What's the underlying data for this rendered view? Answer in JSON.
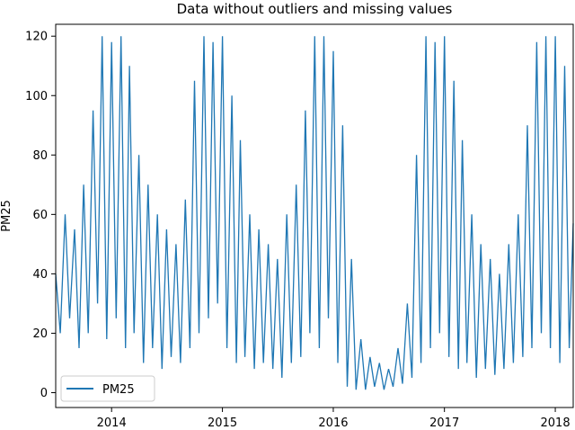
{
  "chart_data": {
    "type": "line",
    "title": "Data without outliers and missing values",
    "xlabel": "",
    "ylabel": "PM25",
    "xlim": [
      "2013-07-01",
      "2018-03-01"
    ],
    "ylim": [
      -5,
      124
    ],
    "x_ticks": [
      "2014-01-01",
      "2015-01-01",
      "2016-01-01",
      "2017-01-01",
      "2018-01-01"
    ],
    "x_tick_labels": [
      "2014",
      "2015",
      "2016",
      "2017",
      "2018"
    ],
    "y_ticks": [
      0,
      20,
      40,
      60,
      80,
      100,
      120
    ],
    "y_tick_labels": [
      "0",
      "20",
      "40",
      "60",
      "80",
      "100",
      "120"
    ],
    "legend": {
      "placement": "lower-left"
    },
    "grid": false,
    "series": [
      {
        "name": "PM25",
        "color": "#1f77b4",
        "points": [
          [
            "2013-07-01",
            40
          ],
          [
            "2013-07-16",
            20
          ],
          [
            "2013-08-01",
            60
          ],
          [
            "2013-08-16",
            25
          ],
          [
            "2013-09-01",
            55
          ],
          [
            "2013-09-16",
            15
          ],
          [
            "2013-10-01",
            70
          ],
          [
            "2013-10-16",
            20
          ],
          [
            "2013-11-01",
            95
          ],
          [
            "2013-11-16",
            30
          ],
          [
            "2013-12-01",
            120
          ],
          [
            "2013-12-16",
            18
          ],
          [
            "2014-01-01",
            118
          ],
          [
            "2014-01-16",
            25
          ],
          [
            "2014-02-01",
            120
          ],
          [
            "2014-02-16",
            15
          ],
          [
            "2014-03-01",
            110
          ],
          [
            "2014-03-16",
            20
          ],
          [
            "2014-04-01",
            80
          ],
          [
            "2014-04-16",
            10
          ],
          [
            "2014-05-01",
            70
          ],
          [
            "2014-05-16",
            15
          ],
          [
            "2014-06-01",
            60
          ],
          [
            "2014-06-16",
            8
          ],
          [
            "2014-07-01",
            55
          ],
          [
            "2014-07-16",
            12
          ],
          [
            "2014-08-01",
            50
          ],
          [
            "2014-08-16",
            10
          ],
          [
            "2014-09-01",
            65
          ],
          [
            "2014-09-16",
            15
          ],
          [
            "2014-10-01",
            105
          ],
          [
            "2014-10-16",
            20
          ],
          [
            "2014-11-01",
            120
          ],
          [
            "2014-11-16",
            25
          ],
          [
            "2014-12-01",
            118
          ],
          [
            "2014-12-16",
            30
          ],
          [
            "2015-01-01",
            120
          ],
          [
            "2015-01-16",
            15
          ],
          [
            "2015-02-01",
            100
          ],
          [
            "2015-02-16",
            10
          ],
          [
            "2015-03-01",
            85
          ],
          [
            "2015-03-16",
            12
          ],
          [
            "2015-04-01",
            60
          ],
          [
            "2015-04-16",
            8
          ],
          [
            "2015-05-01",
            55
          ],
          [
            "2015-05-16",
            10
          ],
          [
            "2015-06-01",
            50
          ],
          [
            "2015-06-16",
            8
          ],
          [
            "2015-07-01",
            45
          ],
          [
            "2015-07-16",
            5
          ],
          [
            "2015-08-01",
            60
          ],
          [
            "2015-08-16",
            10
          ],
          [
            "2015-09-01",
            70
          ],
          [
            "2015-09-16",
            12
          ],
          [
            "2015-10-01",
            95
          ],
          [
            "2015-10-16",
            20
          ],
          [
            "2015-11-01",
            120
          ],
          [
            "2015-11-16",
            15
          ],
          [
            "2015-12-01",
            120
          ],
          [
            "2015-12-16",
            25
          ],
          [
            "2016-01-01",
            115
          ],
          [
            "2016-01-16",
            10
          ],
          [
            "2016-02-01",
            90
          ],
          [
            "2016-02-16",
            2
          ],
          [
            "2016-03-01",
            45
          ],
          [
            "2016-03-16",
            1
          ],
          [
            "2016-04-01",
            18
          ],
          [
            "2016-04-16",
            1
          ],
          [
            "2016-05-01",
            12
          ],
          [
            "2016-05-16",
            2
          ],
          [
            "2016-06-01",
            10
          ],
          [
            "2016-06-16",
            1
          ],
          [
            "2016-07-01",
            8
          ],
          [
            "2016-07-16",
            2
          ],
          [
            "2016-08-01",
            15
          ],
          [
            "2016-08-16",
            3
          ],
          [
            "2016-09-01",
            30
          ],
          [
            "2016-09-16",
            5
          ],
          [
            "2016-10-01",
            80
          ],
          [
            "2016-10-16",
            10
          ],
          [
            "2016-11-01",
            120
          ],
          [
            "2016-11-16",
            15
          ],
          [
            "2016-12-01",
            118
          ],
          [
            "2016-12-16",
            20
          ],
          [
            "2017-01-01",
            120
          ],
          [
            "2017-01-16",
            12
          ],
          [
            "2017-02-01",
            105
          ],
          [
            "2017-02-16",
            8
          ],
          [
            "2017-03-01",
            85
          ],
          [
            "2017-03-16",
            10
          ],
          [
            "2017-04-01",
            60
          ],
          [
            "2017-04-16",
            5
          ],
          [
            "2017-05-01",
            50
          ],
          [
            "2017-05-16",
            8
          ],
          [
            "2017-06-01",
            45
          ],
          [
            "2017-06-16",
            6
          ],
          [
            "2017-07-01",
            40
          ],
          [
            "2017-07-16",
            8
          ],
          [
            "2017-08-01",
            50
          ],
          [
            "2017-08-16",
            10
          ],
          [
            "2017-09-01",
            60
          ],
          [
            "2017-09-16",
            12
          ],
          [
            "2017-10-01",
            90
          ],
          [
            "2017-10-16",
            15
          ],
          [
            "2017-11-01",
            118
          ],
          [
            "2017-11-16",
            20
          ],
          [
            "2017-12-01",
            120
          ],
          [
            "2017-12-16",
            15
          ],
          [
            "2018-01-01",
            120
          ],
          [
            "2018-01-16",
            10
          ],
          [
            "2018-02-01",
            110
          ],
          [
            "2018-02-16",
            15
          ],
          [
            "2018-03-01",
            57
          ]
        ]
      }
    ]
  }
}
